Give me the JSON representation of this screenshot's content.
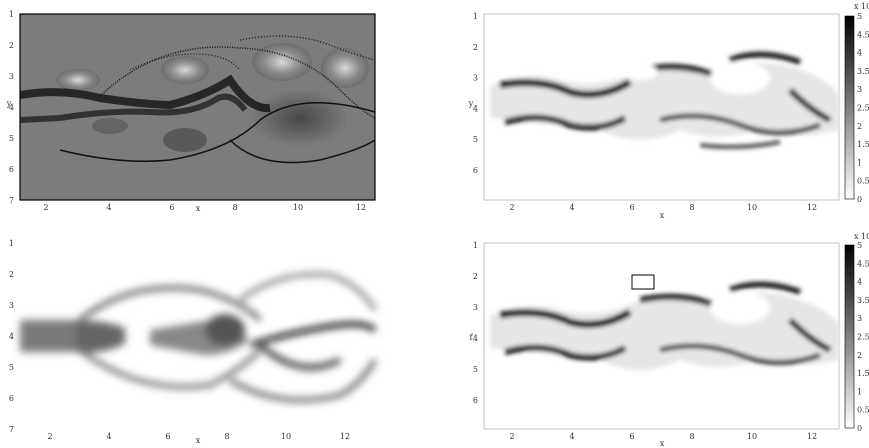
{
  "panels": [
    {
      "name": "top-left",
      "xlabel": "x",
      "ylabel": "y",
      "xticks": [
        "2",
        "4",
        "6",
        "8",
        "10",
        "12"
      ],
      "yticks": [
        "1",
        "2",
        "3",
        "4",
        "5",
        "6",
        "7"
      ]
    },
    {
      "name": "top-right",
      "xlabel": "x",
      "ylabel": "y",
      "xticks": [
        "2",
        "4",
        "6",
        "8",
        "10",
        "12"
      ],
      "yticks": [
        "1",
        "2",
        "3",
        "4",
        "5",
        "6"
      ],
      "colorbar": {
        "exponent": "x 10",
        "ticks": [
          "5",
          "4.5",
          "4",
          "3.5",
          "3",
          "2.5",
          "2",
          "1.5",
          "1",
          "0.5",
          "0"
        ]
      }
    },
    {
      "name": "bottom-left",
      "xlabel": "x",
      "ylabel": "",
      "xticks": [
        "2",
        "4",
        "6",
        "8",
        "10",
        "12"
      ],
      "yticks": [
        "1",
        "2",
        "3",
        "4",
        "5",
        "6",
        "7"
      ]
    },
    {
      "name": "bottom-right",
      "xlabel": "x",
      "ylabel": "f",
      "xticks": [
        "2",
        "4",
        "6",
        "8",
        "10",
        "12"
      ],
      "yticks": [
        "1",
        "2",
        "3",
        "4",
        "5",
        "6"
      ],
      "colorbar": {
        "exponent": "x 10",
        "ticks": [
          "5",
          "4.5",
          "4",
          "3.5",
          "3",
          "2.5",
          "2",
          "1.5",
          "1",
          "0.5",
          "0"
        ]
      }
    }
  ]
}
